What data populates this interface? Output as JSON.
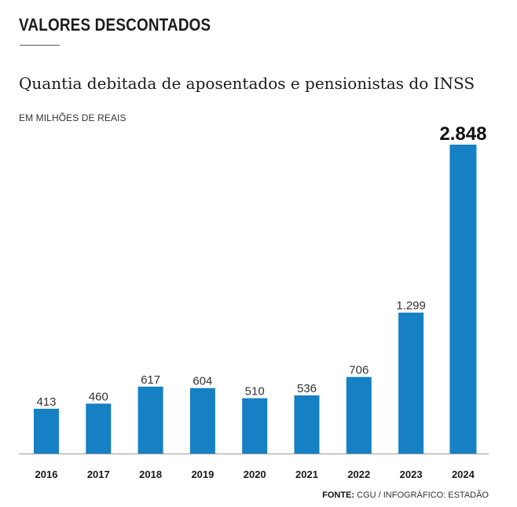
{
  "header": {
    "kicker": "VALORES DESCONTADOS",
    "title": "Quantia debitada de aposentados e pensionistas do INSS",
    "unit": "EM MILHÕES DE REAIS"
  },
  "footer": {
    "source_label": "FONTE:",
    "source_text": "CGU / INFOGRÁFICO: ESTADÃO"
  },
  "colors": {
    "bar": "#1580c4",
    "baseline": "#9a9a9a"
  },
  "chart_data": {
    "type": "bar",
    "title": "Quantia debitada de aposentados e pensionistas do INSS",
    "xlabel": "",
    "ylabel": "EM MILHÕES DE REAIS",
    "categories": [
      "2016",
      "2017",
      "2018",
      "2019",
      "2020",
      "2021",
      "2022",
      "2023",
      "2024"
    ],
    "values": [
      413,
      460,
      617,
      604,
      510,
      536,
      706,
      1299,
      2848
    ],
    "value_labels": [
      "413",
      "460",
      "617",
      "604",
      "510",
      "536",
      "706",
      "1.299",
      "2.848"
    ],
    "highlight_index": 8,
    "ylim": [
      0,
      2848
    ],
    "grid": false
  }
}
